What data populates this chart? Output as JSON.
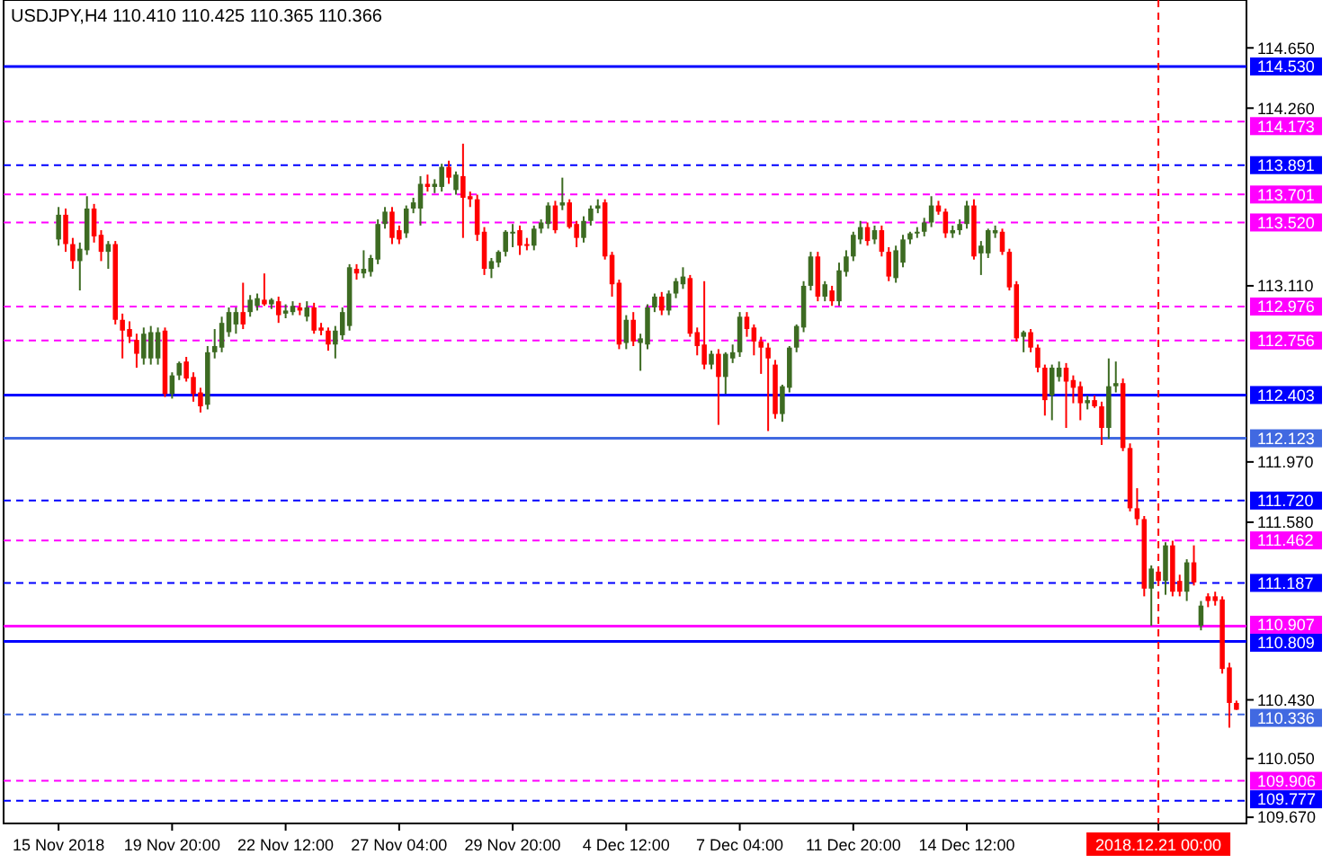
{
  "chart_data": {
    "type": "candlestick",
    "title": "USDJPY,H4  110.410 110.425 110.365 110.366",
    "categories": [
      "15 Nov 2018",
      null,
      null,
      null,
      null,
      null,
      null,
      null,
      null,
      null,
      null,
      null,
      null,
      null,
      null,
      null,
      "19 Nov 20:00",
      null,
      null,
      null,
      null,
      null,
      null,
      null,
      null,
      null,
      null,
      null,
      null,
      null,
      null,
      null,
      "22 Nov 12:00",
      null,
      null,
      null,
      null,
      null,
      null,
      null,
      null,
      null,
      null,
      null,
      null,
      null,
      null,
      null,
      "27 Nov 04:00",
      null,
      null,
      null,
      null,
      null,
      null,
      null,
      null,
      null,
      null,
      null,
      null,
      null,
      null,
      null,
      "29 Nov 20:00",
      null,
      null,
      null,
      null,
      null,
      null,
      null,
      null,
      null,
      null,
      null,
      null,
      null,
      null,
      null,
      "4 Dec 12:00",
      null,
      null,
      null,
      null,
      null,
      null,
      null,
      null,
      null,
      null,
      null,
      null,
      null,
      null,
      null,
      "7 Dec 04:00",
      null,
      null,
      null,
      null,
      null,
      null,
      null,
      null,
      null,
      null,
      null,
      null,
      null,
      null,
      null,
      "11 Dec 20:00",
      null,
      null,
      null,
      null,
      null,
      null,
      null,
      null,
      null,
      null,
      null,
      null,
      null,
      null,
      null,
      "14 Dec 12:00",
      null,
      null,
      null,
      null,
      null,
      null,
      null,
      null,
      null,
      null,
      null,
      null,
      null,
      null,
      null,
      null,
      null,
      null,
      null,
      null,
      null,
      null,
      null,
      null,
      null,
      null,
      "2018.12.21 00:00",
      null,
      null,
      null,
      null,
      null,
      null,
      null,
      null,
      null,
      null,
      null
    ],
    "ohlc": [
      [
        113.41,
        113.62,
        113.37,
        113.57
      ],
      [
        113.57,
        113.61,
        113.33,
        113.38
      ],
      [
        113.38,
        113.42,
        113.22,
        113.27
      ],
      [
        113.27,
        113.39,
        113.08,
        113.35
      ],
      [
        113.34,
        113.69,
        113.31,
        113.61
      ],
      [
        113.61,
        113.64,
        113.39,
        113.43
      ],
      [
        113.44,
        113.47,
        113.27,
        113.33
      ],
      [
        113.33,
        113.4,
        113.22,
        113.38
      ],
      [
        113.38,
        113.4,
        112.86,
        112.89
      ],
      [
        112.89,
        112.93,
        112.64,
        112.82
      ],
      [
        112.83,
        112.88,
        112.74,
        112.78
      ],
      [
        112.76,
        112.8,
        112.58,
        112.67
      ],
      [
        112.64,
        112.84,
        112.6,
        112.8
      ],
      [
        112.64,
        112.85,
        112.6,
        112.81
      ],
      [
        112.64,
        112.84,
        112.6,
        112.81
      ],
      [
        112.82,
        112.84,
        112.39,
        112.41
      ],
      [
        112.41,
        112.55,
        112.38,
        112.53
      ],
      [
        112.53,
        112.62,
        112.5,
        112.61
      ],
      [
        112.62,
        112.65,
        112.49,
        112.51
      ],
      [
        112.52,
        112.55,
        112.36,
        112.41
      ],
      [
        112.42,
        112.45,
        112.29,
        112.33
      ],
      [
        112.34,
        112.72,
        112.31,
        112.68
      ],
      [
        112.68,
        112.83,
        112.64,
        112.72
      ],
      [
        112.71,
        112.91,
        112.68,
        112.87
      ],
      [
        112.81,
        112.97,
        112.78,
        112.94
      ],
      [
        112.86,
        112.97,
        112.8,
        112.94
      ],
      [
        112.94,
        113.13,
        112.83,
        112.86
      ],
      [
        112.94,
        113.05,
        112.91,
        113.02
      ],
      [
        112.98,
        113.06,
        112.95,
        113.03
      ],
      [
        113.02,
        113.19,
        112.98,
        112.99
      ],
      [
        112.99,
        113.03,
        112.96,
        113.02
      ],
      [
        113.01,
        113.04,
        112.87,
        112.92
      ],
      [
        112.93,
        112.99,
        112.9,
        112.95
      ],
      [
        112.94,
        113.01,
        112.92,
        112.98
      ],
      [
        112.97,
        113.0,
        112.92,
        112.95
      ],
      [
        112.91,
        113.01,
        112.88,
        112.97
      ],
      [
        112.97,
        113.0,
        112.8,
        112.82
      ],
      [
        112.84,
        112.87,
        112.79,
        112.82
      ],
      [
        112.82,
        112.84,
        112.69,
        112.73
      ],
      [
        112.73,
        112.85,
        112.64,
        112.82
      ],
      [
        112.79,
        112.97,
        112.76,
        112.94
      ],
      [
        112.85,
        113.25,
        112.82,
        113.23
      ],
      [
        113.22,
        113.25,
        113.15,
        113.19
      ],
      [
        113.19,
        113.34,
        113.16,
        113.22
      ],
      [
        113.2,
        113.31,
        113.17,
        113.29
      ],
      [
        113.28,
        113.54,
        113.25,
        113.51
      ],
      [
        113.51,
        113.62,
        113.48,
        113.59
      ],
      [
        113.59,
        113.62,
        113.38,
        113.42
      ],
      [
        113.47,
        113.5,
        113.38,
        113.41
      ],
      [
        113.45,
        113.63,
        113.42,
        113.61
      ],
      [
        113.61,
        113.68,
        113.58,
        113.65
      ],
      [
        113.61,
        113.82,
        113.5,
        113.77
      ],
      [
        113.77,
        113.83,
        113.72,
        113.75
      ],
      [
        113.75,
        113.8,
        113.71,
        113.77
      ],
      [
        113.75,
        113.9,
        113.72,
        113.88
      ],
      [
        113.88,
        113.92,
        113.77,
        113.81
      ],
      [
        113.73,
        113.85,
        113.7,
        113.83
      ],
      [
        113.82,
        114.03,
        113.42,
        113.68
      ],
      [
        113.69,
        113.72,
        113.62,
        113.67
      ],
      [
        113.67,
        113.7,
        113.4,
        113.44
      ],
      [
        113.46,
        113.49,
        113.18,
        113.22
      ],
      [
        113.22,
        113.29,
        113.16,
        113.27
      ],
      [
        113.26,
        113.34,
        113.23,
        113.33
      ],
      [
        113.33,
        113.47,
        113.3,
        113.46
      ],
      [
        113.45,
        113.51,
        113.36,
        113.46
      ],
      [
        113.47,
        113.5,
        113.31,
        113.37
      ],
      [
        113.38,
        113.42,
        113.34,
        113.37
      ],
      [
        113.37,
        113.5,
        113.34,
        113.48
      ],
      [
        113.48,
        113.54,
        113.45,
        113.52
      ],
      [
        113.51,
        113.65,
        113.48,
        113.63
      ],
      [
        113.63,
        113.66,
        113.45,
        113.47
      ],
      [
        113.63,
        113.81,
        113.6,
        113.65
      ],
      [
        113.65,
        113.67,
        113.48,
        113.49
      ],
      [
        113.51,
        113.53,
        113.36,
        113.42
      ],
      [
        113.42,
        113.56,
        113.39,
        113.53
      ],
      [
        113.53,
        113.63,
        113.5,
        113.61
      ],
      [
        113.61,
        113.67,
        113.58,
        113.63
      ],
      [
        113.65,
        113.67,
        113.28,
        113.3
      ],
      [
        113.31,
        113.33,
        113.04,
        113.12
      ],
      [
        113.13,
        113.15,
        112.7,
        112.73
      ],
      [
        112.74,
        112.92,
        112.7,
        112.89
      ],
      [
        112.89,
        112.94,
        112.72,
        112.75
      ],
      [
        112.74,
        112.8,
        112.56,
        112.77
      ],
      [
        112.73,
        112.99,
        112.7,
        112.97
      ],
      [
        112.97,
        113.06,
        112.94,
        113.04
      ],
      [
        113.04,
        113.07,
        112.92,
        112.95
      ],
      [
        112.95,
        113.08,
        112.92,
        113.06
      ],
      [
        113.06,
        113.16,
        113.03,
        113.14
      ],
      [
        113.12,
        113.23,
        113.09,
        113.17
      ],
      [
        113.16,
        113.18,
        112.78,
        112.8
      ],
      [
        112.81,
        112.84,
        112.66,
        112.72
      ],
      [
        112.73,
        113.14,
        112.57,
        112.6
      ],
      [
        112.6,
        112.69,
        112.57,
        112.67
      ],
      [
        112.67,
        112.7,
        112.21,
        112.52
      ],
      [
        112.52,
        112.68,
        112.41,
        112.67
      ],
      [
        112.64,
        112.73,
        112.61,
        112.68
      ],
      [
        112.68,
        112.94,
        112.65,
        112.91
      ],
      [
        112.91,
        112.94,
        112.78,
        112.83
      ],
      [
        112.84,
        112.86,
        112.66,
        112.75
      ],
      [
        112.75,
        112.78,
        112.54,
        112.71
      ],
      [
        112.71,
        112.74,
        112.17,
        112.64
      ],
      [
        112.6,
        112.63,
        112.25,
        112.28
      ],
      [
        112.28,
        112.47,
        112.23,
        112.46
      ],
      [
        112.45,
        112.72,
        112.42,
        112.71
      ],
      [
        112.71,
        112.86,
        112.68,
        112.85
      ],
      [
        112.84,
        113.14,
        112.81,
        113.11
      ],
      [
        113.11,
        113.33,
        113.08,
        113.3
      ],
      [
        113.3,
        113.33,
        113.01,
        113.04
      ],
      [
        113.04,
        113.14,
        113.01,
        113.12
      ],
      [
        113.08,
        113.11,
        112.98,
        113.01
      ],
      [
        113.01,
        113.26,
        112.98,
        113.21
      ],
      [
        113.2,
        113.34,
        113.17,
        113.3
      ],
      [
        113.3,
        113.46,
        113.27,
        113.44
      ],
      [
        113.41,
        113.53,
        113.38,
        113.49
      ],
      [
        113.49,
        113.52,
        113.37,
        113.4
      ],
      [
        113.41,
        113.5,
        113.38,
        113.47
      ],
      [
        113.47,
        113.5,
        113.3,
        113.33
      ],
      [
        113.33,
        113.36,
        113.14,
        113.17
      ],
      [
        113.16,
        113.37,
        113.13,
        113.34
      ],
      [
        113.26,
        113.44,
        113.23,
        113.41
      ],
      [
        113.41,
        113.46,
        113.38,
        113.45
      ],
      [
        113.45,
        113.49,
        113.42,
        113.46
      ],
      [
        113.46,
        113.55,
        113.43,
        113.52
      ],
      [
        113.52,
        113.69,
        113.49,
        113.63
      ],
      [
        113.63,
        113.66,
        113.57,
        113.59
      ],
      [
        113.59,
        113.61,
        113.42,
        113.45
      ],
      [
        113.45,
        113.5,
        113.42,
        113.47
      ],
      [
        113.47,
        113.54,
        113.44,
        113.51
      ],
      [
        113.51,
        113.66,
        113.48,
        113.63
      ],
      [
        113.63,
        113.67,
        113.28,
        113.3
      ],
      [
        113.32,
        113.4,
        113.18,
        113.37
      ],
      [
        113.32,
        113.48,
        113.29,
        113.47
      ],
      [
        113.45,
        113.5,
        113.42,
        113.47
      ],
      [
        113.46,
        113.48,
        113.31,
        113.33
      ],
      [
        113.33,
        113.35,
        113.08,
        113.1
      ],
      [
        113.12,
        113.14,
        112.75,
        112.77
      ],
      [
        112.78,
        112.82,
        112.68,
        112.81
      ],
      [
        112.81,
        112.83,
        112.68,
        112.71
      ],
      [
        112.71,
        112.73,
        112.55,
        112.58
      ],
      [
        112.58,
        112.6,
        112.27,
        112.37
      ],
      [
        112.4,
        112.6,
        112.24,
        112.58
      ],
      [
        112.52,
        112.62,
        112.49,
        112.58
      ],
      [
        112.58,
        112.61,
        112.19,
        112.49
      ],
      [
        112.5,
        112.53,
        112.35,
        112.45
      ],
      [
        112.46,
        112.49,
        112.24,
        112.35
      ],
      [
        112.35,
        112.4,
        112.31,
        112.37
      ],
      [
        112.37,
        112.4,
        112.32,
        112.33
      ],
      [
        112.33,
        112.36,
        112.08,
        112.19
      ],
      [
        112.19,
        112.64,
        112.12,
        112.46
      ],
      [
        112.46,
        112.62,
        112.42,
        112.48
      ],
      [
        112.48,
        112.51,
        112.04,
        112.06
      ],
      [
        112.06,
        112.09,
        111.65,
        111.67
      ],
      [
        111.67,
        111.8,
        111.56,
        111.6
      ],
      [
        111.6,
        111.62,
        111.1,
        111.15
      ],
      [
        111.15,
        111.3,
        110.91,
        111.28
      ],
      [
        111.26,
        111.28,
        111.17,
        111.2
      ],
      [
        111.2,
        111.45,
        111.11,
        111.43
      ],
      [
        111.43,
        111.46,
        111.1,
        111.13
      ],
      [
        111.2,
        111.24,
        111.1,
        111.13
      ],
      [
        111.13,
        111.34,
        111.07,
        111.32
      ],
      [
        111.32,
        111.43,
        111.17,
        111.19
      ],
      [
        110.91,
        111.07,
        110.88,
        111.04
      ],
      [
        111.1,
        111.12,
        111.03,
        111.07
      ],
      [
        111.1,
        111.13,
        111.04,
        111.07
      ],
      [
        111.08,
        111.1,
        110.6,
        110.63
      ],
      [
        110.64,
        110.67,
        110.25,
        110.41
      ],
      [
        110.41,
        110.425,
        110.365,
        110.366
      ]
    ],
    "ylim": [
      109.63,
      114.96
    ],
    "yticks": [
      {
        "value": 114.65,
        "label": "114.650"
      },
      {
        "value": 114.26,
        "label": "114.260"
      },
      {
        "value": 113.11,
        "label": "113.110"
      },
      {
        "value": 111.97,
        "label": "111.970"
      },
      {
        "value": 111.58,
        "label": "111.580"
      },
      {
        "value": 110.43,
        "label": "110.430"
      },
      {
        "value": 110.05,
        "label": "110.050"
      },
      {
        "value": 109.67,
        "label": "109.670"
      }
    ],
    "ref_lines": [
      {
        "axis": "y",
        "value": 114.53,
        "label": "114.530",
        "color": "#0000ff",
        "line_style": "solid"
      },
      {
        "axis": "y",
        "value": 114.173,
        "label": "114.173",
        "color": "#ff00ff",
        "line_style": "dashed"
      },
      {
        "axis": "y",
        "value": 113.891,
        "label": "113.891",
        "color": "#0000ff",
        "line_style": "dashed"
      },
      {
        "axis": "y",
        "value": 113.701,
        "label": "113.701",
        "color": "#ff00ff",
        "line_style": "dashed"
      },
      {
        "axis": "y",
        "value": 113.52,
        "label": "113.520",
        "color": "#ff00ff",
        "line_style": "dashed"
      },
      {
        "axis": "y",
        "value": 112.976,
        "label": "112.976",
        "color": "#ff00ff",
        "line_style": "dashed"
      },
      {
        "axis": "y",
        "value": 112.756,
        "label": "112.756",
        "color": "#ff00ff",
        "line_style": "dashed"
      },
      {
        "axis": "y",
        "value": 112.403,
        "label": "112.403",
        "color": "#0000ff",
        "line_style": "solid"
      },
      {
        "axis": "y",
        "value": 112.123,
        "label": "112.123",
        "color": "#4169e1",
        "line_style": "solid"
      },
      {
        "axis": "y",
        "value": 111.72,
        "label": "111.720",
        "color": "#0000ff",
        "line_style": "dashed"
      },
      {
        "axis": "y",
        "value": 111.462,
        "label": "111.462",
        "color": "#ff00ff",
        "line_style": "dashed"
      },
      {
        "axis": "y",
        "value": 111.187,
        "label": "111.187",
        "color": "#0000ff",
        "line_style": "dashed"
      },
      {
        "axis": "y",
        "value": 110.907,
        "label": "110.907",
        "color": "#ff00ff",
        "line_style": "solid"
      },
      {
        "axis": "y",
        "value": 110.809,
        "label": "110.809",
        "color": "#0000ff",
        "line_style": "solid"
      },
      {
        "axis": "y",
        "value": 110.336,
        "label": "110.336",
        "color": "#4169e1",
        "line_style": "dashed"
      },
      {
        "axis": "y",
        "value": 109.906,
        "label": "109.906",
        "color": "#ff00ff",
        "line_style": "dashed"
      },
      {
        "axis": "y",
        "value": 109.777,
        "label": "109.777",
        "color": "#0000ff",
        "line_style": "dashed"
      },
      {
        "axis": "x",
        "value": "2018.12.21 00:00",
        "color": "#ff0000",
        "line_style": "dashed"
      }
    ],
    "grid": false
  }
}
